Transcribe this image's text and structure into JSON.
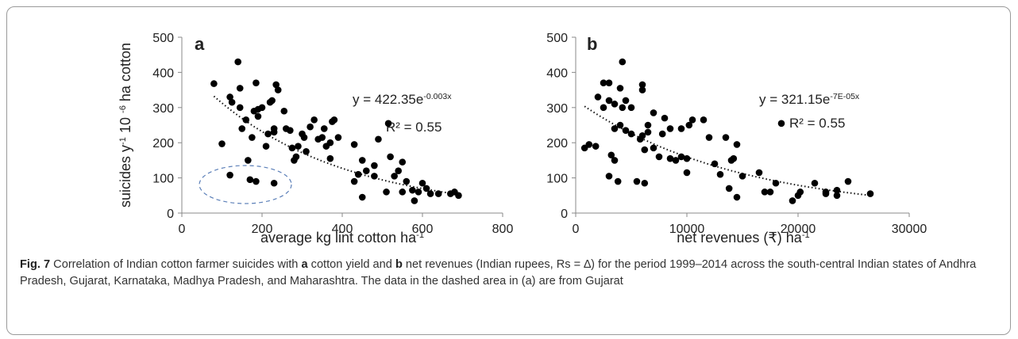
{
  "chart_data": [
    {
      "type": "scatter",
      "panel": "a",
      "ylabel": [
        {
          "text": "suicides y"
        },
        {
          "text": "-1",
          "sup": true
        },
        {
          "text": "  10 "
        },
        {
          "text": "-6",
          "sup": true
        },
        {
          "text": "  ha cotton"
        }
      ],
      "xlabel": [
        {
          "text": "average kg lint cotton ha"
        },
        {
          "text": "-1",
          "sup": true
        }
      ],
      "equation": [
        {
          "text": "y = 422.35e"
        },
        {
          "text": "-0.003x",
          "sup": true
        }
      ],
      "r2": "R² = 0.55",
      "trendline": {
        "coef": 422.35,
        "rate": -0.003
      },
      "color": "#000000",
      "xlim": [
        0,
        800
      ],
      "xticks": [
        0,
        200,
        400,
        600,
        800
      ],
      "ylim": [
        0,
        500
      ],
      "yticks": [
        0,
        100,
        200,
        300,
        400,
        500
      ],
      "x": [
        80,
        100,
        120,
        125,
        120,
        140,
        145,
        145,
        150,
        160,
        165,
        170,
        185,
        175,
        180,
        185,
        190,
        190,
        200,
        210,
        215,
        220,
        225,
        230,
        230,
        235,
        240,
        230,
        255,
        260,
        270,
        275,
        280,
        285,
        290,
        300,
        305,
        310,
        320,
        330,
        340,
        350,
        355,
        360,
        370,
        370,
        375,
        380,
        390,
        430,
        430,
        440,
        450,
        450,
        460,
        480,
        480,
        490,
        510,
        515,
        520,
        530,
        540,
        550,
        550,
        560,
        575,
        580,
        590,
        600,
        610,
        620,
        640,
        670,
        680,
        690
      ],
      "y": [
        368,
        197,
        330,
        315,
        108,
        430,
        355,
        300,
        240,
        265,
        150,
        95,
        90,
        215,
        290,
        370,
        275,
        295,
        300,
        190,
        225,
        315,
        320,
        230,
        240,
        365,
        350,
        85,
        290,
        240,
        235,
        185,
        150,
        160,
        190,
        225,
        215,
        175,
        245,
        265,
        210,
        215,
        240,
        190,
        200,
        155,
        260,
        265,
        215,
        195,
        90,
        110,
        150,
        45,
        120,
        135,
        105,
        210,
        60,
        255,
        160,
        105,
        120,
        145,
        60,
        90,
        65,
        35,
        60,
        85,
        70,
        55,
        55,
        55,
        60,
        50
      ]
    },
    {
      "type": "scatter",
      "panel": "b",
      "xlabel": [
        {
          "text": "net revenues (₹) ha"
        },
        {
          "text": "-1",
          "sup": true
        }
      ],
      "equation": [
        {
          "text": "y = 321.15e"
        },
        {
          "text": "-7E-05x",
          "sup": true
        }
      ],
      "r2": "R² = 0.55",
      "trendline": {
        "coef": 321.15,
        "rate": -7e-05
      },
      "color": "#000000",
      "xlim": [
        0,
        30000
      ],
      "xticks": [
        0,
        10000,
        20000,
        30000
      ],
      "ylim": [
        0,
        500
      ],
      "yticks": [
        0,
        100,
        200,
        300,
        400,
        500
      ],
      "x": [
        800,
        1200,
        1800,
        2000,
        2500,
        2500,
        3000,
        3000,
        3000,
        3200,
        3500,
        3500,
        3500,
        3800,
        4000,
        4000,
        4200,
        4200,
        4500,
        4500,
        5000,
        5000,
        5500,
        5800,
        6000,
        6000,
        6000,
        6200,
        6200,
        6500,
        6500,
        7000,
        7000,
        7500,
        7800,
        8000,
        8500,
        8500,
        9000,
        9500,
        9500,
        10000,
        10000,
        10200,
        10500,
        11500,
        12000,
        12500,
        13000,
        13500,
        13800,
        14000,
        14200,
        14500,
        14500,
        15000,
        16500,
        17000,
        17500,
        18000,
        18500,
        19500,
        20000,
        20200,
        21500,
        22500,
        22500,
        23500,
        23500,
        24500,
        26500
      ],
      "y": [
        185,
        195,
        190,
        330,
        300,
        370,
        320,
        370,
        105,
        165,
        310,
        240,
        150,
        90,
        355,
        250,
        430,
        300,
        320,
        235,
        300,
        225,
        90,
        210,
        365,
        220,
        350,
        85,
        180,
        230,
        250,
        185,
        285,
        160,
        225,
        270,
        155,
        240,
        150,
        240,
        160,
        155,
        115,
        250,
        265,
        265,
        215,
        140,
        110,
        215,
        70,
        150,
        155,
        195,
        45,
        105,
        115,
        60,
        60,
        85,
        255,
        35,
        50,
        60,
        85,
        55,
        60,
        65,
        50,
        90,
        55
      ]
    }
  ],
  "caption": [
    {
      "text": "Fig. 7",
      "bold": true
    },
    {
      "text": "  Correlation of Indian cotton farmer suicides with "
    },
    {
      "text": "a",
      "bold": true
    },
    {
      "text": " cotton yield and "
    },
    {
      "text": "b",
      "bold": true
    },
    {
      "text": " net revenues (Indian rupees, Rs = ∆) for the period 1999–2014 across the south-central Indian states of Andhra Pradesh, Gujarat, Karnataka, Madhya Pradesh, and Maharashtra. The data in the dashed area in (a) are from Gujarat"
    }
  ]
}
